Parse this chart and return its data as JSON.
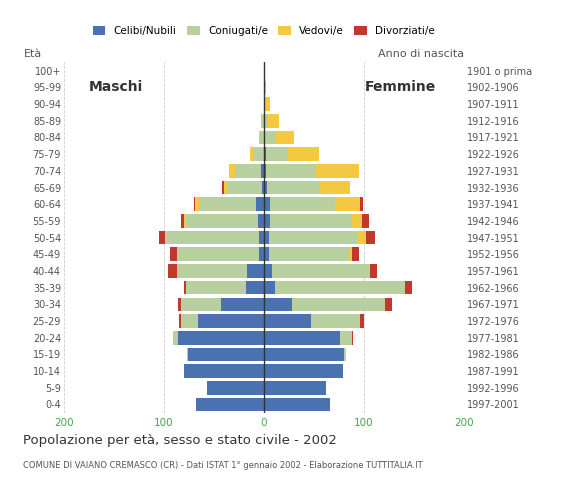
{
  "age_groups": [
    "0-4",
    "5-9",
    "10-14",
    "15-19",
    "20-24",
    "25-29",
    "30-34",
    "35-39",
    "40-44",
    "45-49",
    "50-54",
    "55-59",
    "60-64",
    "65-69",
    "70-74",
    "75-79",
    "80-84",
    "85-89",
    "90-94",
    "95-99",
    "100+"
  ],
  "birth_years": [
    "1997-2001",
    "1992-1996",
    "1987-1991",
    "1982-1986",
    "1977-1981",
    "1972-1976",
    "1967-1971",
    "1962-1966",
    "1957-1961",
    "1952-1956",
    "1947-1951",
    "1942-1946",
    "1937-1941",
    "1932-1936",
    "1927-1931",
    "1922-1926",
    "1917-1921",
    "1912-1916",
    "1907-1911",
    "1902-1906",
    "1901 o prima"
  ],
  "males": {
    "celibe": [
      68,
      57,
      80,
      76,
      86,
      66,
      43,
      18,
      17,
      5,
      5,
      6,
      8,
      2,
      3,
      0,
      0,
      0,
      0,
      0,
      0
    ],
    "coniugato": [
      0,
      0,
      0,
      1,
      5,
      17,
      40,
      60,
      70,
      82,
      93,
      72,
      57,
      34,
      26,
      11,
      4,
      2,
      0,
      0,
      0
    ],
    "vedovo": [
      0,
      0,
      0,
      0,
      0,
      0,
      0,
      0,
      0,
      0,
      1,
      2,
      4,
      4,
      6,
      3,
      1,
      1,
      0,
      0,
      0
    ],
    "divorziato": [
      0,
      0,
      0,
      0,
      0,
      2,
      3,
      2,
      9,
      7,
      6,
      3,
      1,
      2,
      0,
      0,
      0,
      0,
      0,
      0,
      0
    ]
  },
  "females": {
    "nubile": [
      66,
      62,
      79,
      80,
      76,
      47,
      28,
      11,
      8,
      5,
      5,
      6,
      6,
      3,
      2,
      2,
      1,
      1,
      1,
      0,
      0
    ],
    "coniugata": [
      0,
      0,
      0,
      2,
      12,
      49,
      93,
      130,
      97,
      81,
      88,
      82,
      65,
      53,
      50,
      22,
      11,
      3,
      0,
      0,
      0
    ],
    "vedova": [
      0,
      0,
      0,
      0,
      0,
      0,
      0,
      0,
      1,
      2,
      9,
      10,
      25,
      30,
      43,
      31,
      18,
      11,
      5,
      2,
      0
    ],
    "divorziata": [
      0,
      0,
      0,
      0,
      1,
      4,
      7,
      7,
      7,
      7,
      9,
      7,
      3,
      0,
      0,
      0,
      0,
      0,
      0,
      0,
      0
    ]
  },
  "colors": {
    "celibe": "#4a72b0",
    "coniugato": "#b8cfa0",
    "vedovo": "#f5c842",
    "divorziato": "#c0392b"
  },
  "title": "Popolazione per età, sesso e stato civile - 2002",
  "subtitle": "COMUNE DI VAIANO CREMASCO (CR) - Dati ISTAT 1° gennaio 2002 - Elaborazione TUTTITALIA.IT",
  "xlabel_left": "Maschi",
  "xlabel_right": "Femmine",
  "ylabel_left": "Età",
  "ylabel_right": "Anno di nascita",
  "xlim": 200,
  "legend_labels": [
    "Celibi/Nubili",
    "Coniugati/e",
    "Vedovi/e",
    "Divorziati/e"
  ],
  "background_color": "#ffffff",
  "grid_color": "#cccccc"
}
